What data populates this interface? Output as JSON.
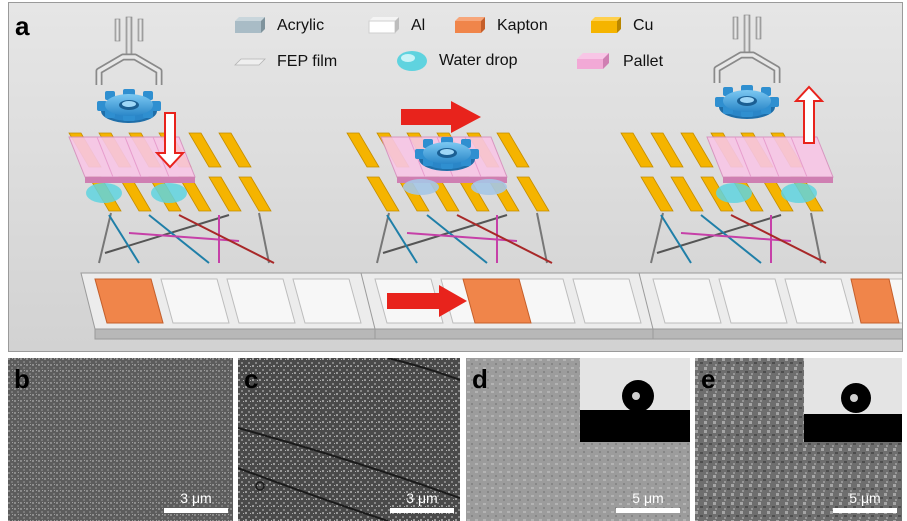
{
  "panels": {
    "a": "a",
    "b": "b",
    "c": "c",
    "d": "d",
    "e": "e"
  },
  "legend": [
    {
      "label": "Acrylic",
      "color": "#a9bcc6"
    },
    {
      "label": "Al",
      "color": "#ffffff"
    },
    {
      "label": "Kapton",
      "color": "#f0854a"
    },
    {
      "label": "Cu",
      "color": "#f5b400"
    },
    {
      "label": "FEP film",
      "color": "#ececec"
    },
    {
      "label": "Water drop",
      "color": "#5fd3df"
    },
    {
      "label": "Pallet",
      "color": "#f2a9d6"
    }
  ],
  "scale_bars": {
    "b": "3 μm",
    "c": "3 μm",
    "d": "5 μm",
    "e": "5 μm"
  },
  "colors": {
    "arrow_red": "#e8231c",
    "gear_blue": "#3a9fdc",
    "cu_yellow": "#f5b400",
    "kapton_orange": "#f0854a",
    "pallet_pink": "#f2a9d6",
    "water_cyan": "#5fd3df"
  }
}
